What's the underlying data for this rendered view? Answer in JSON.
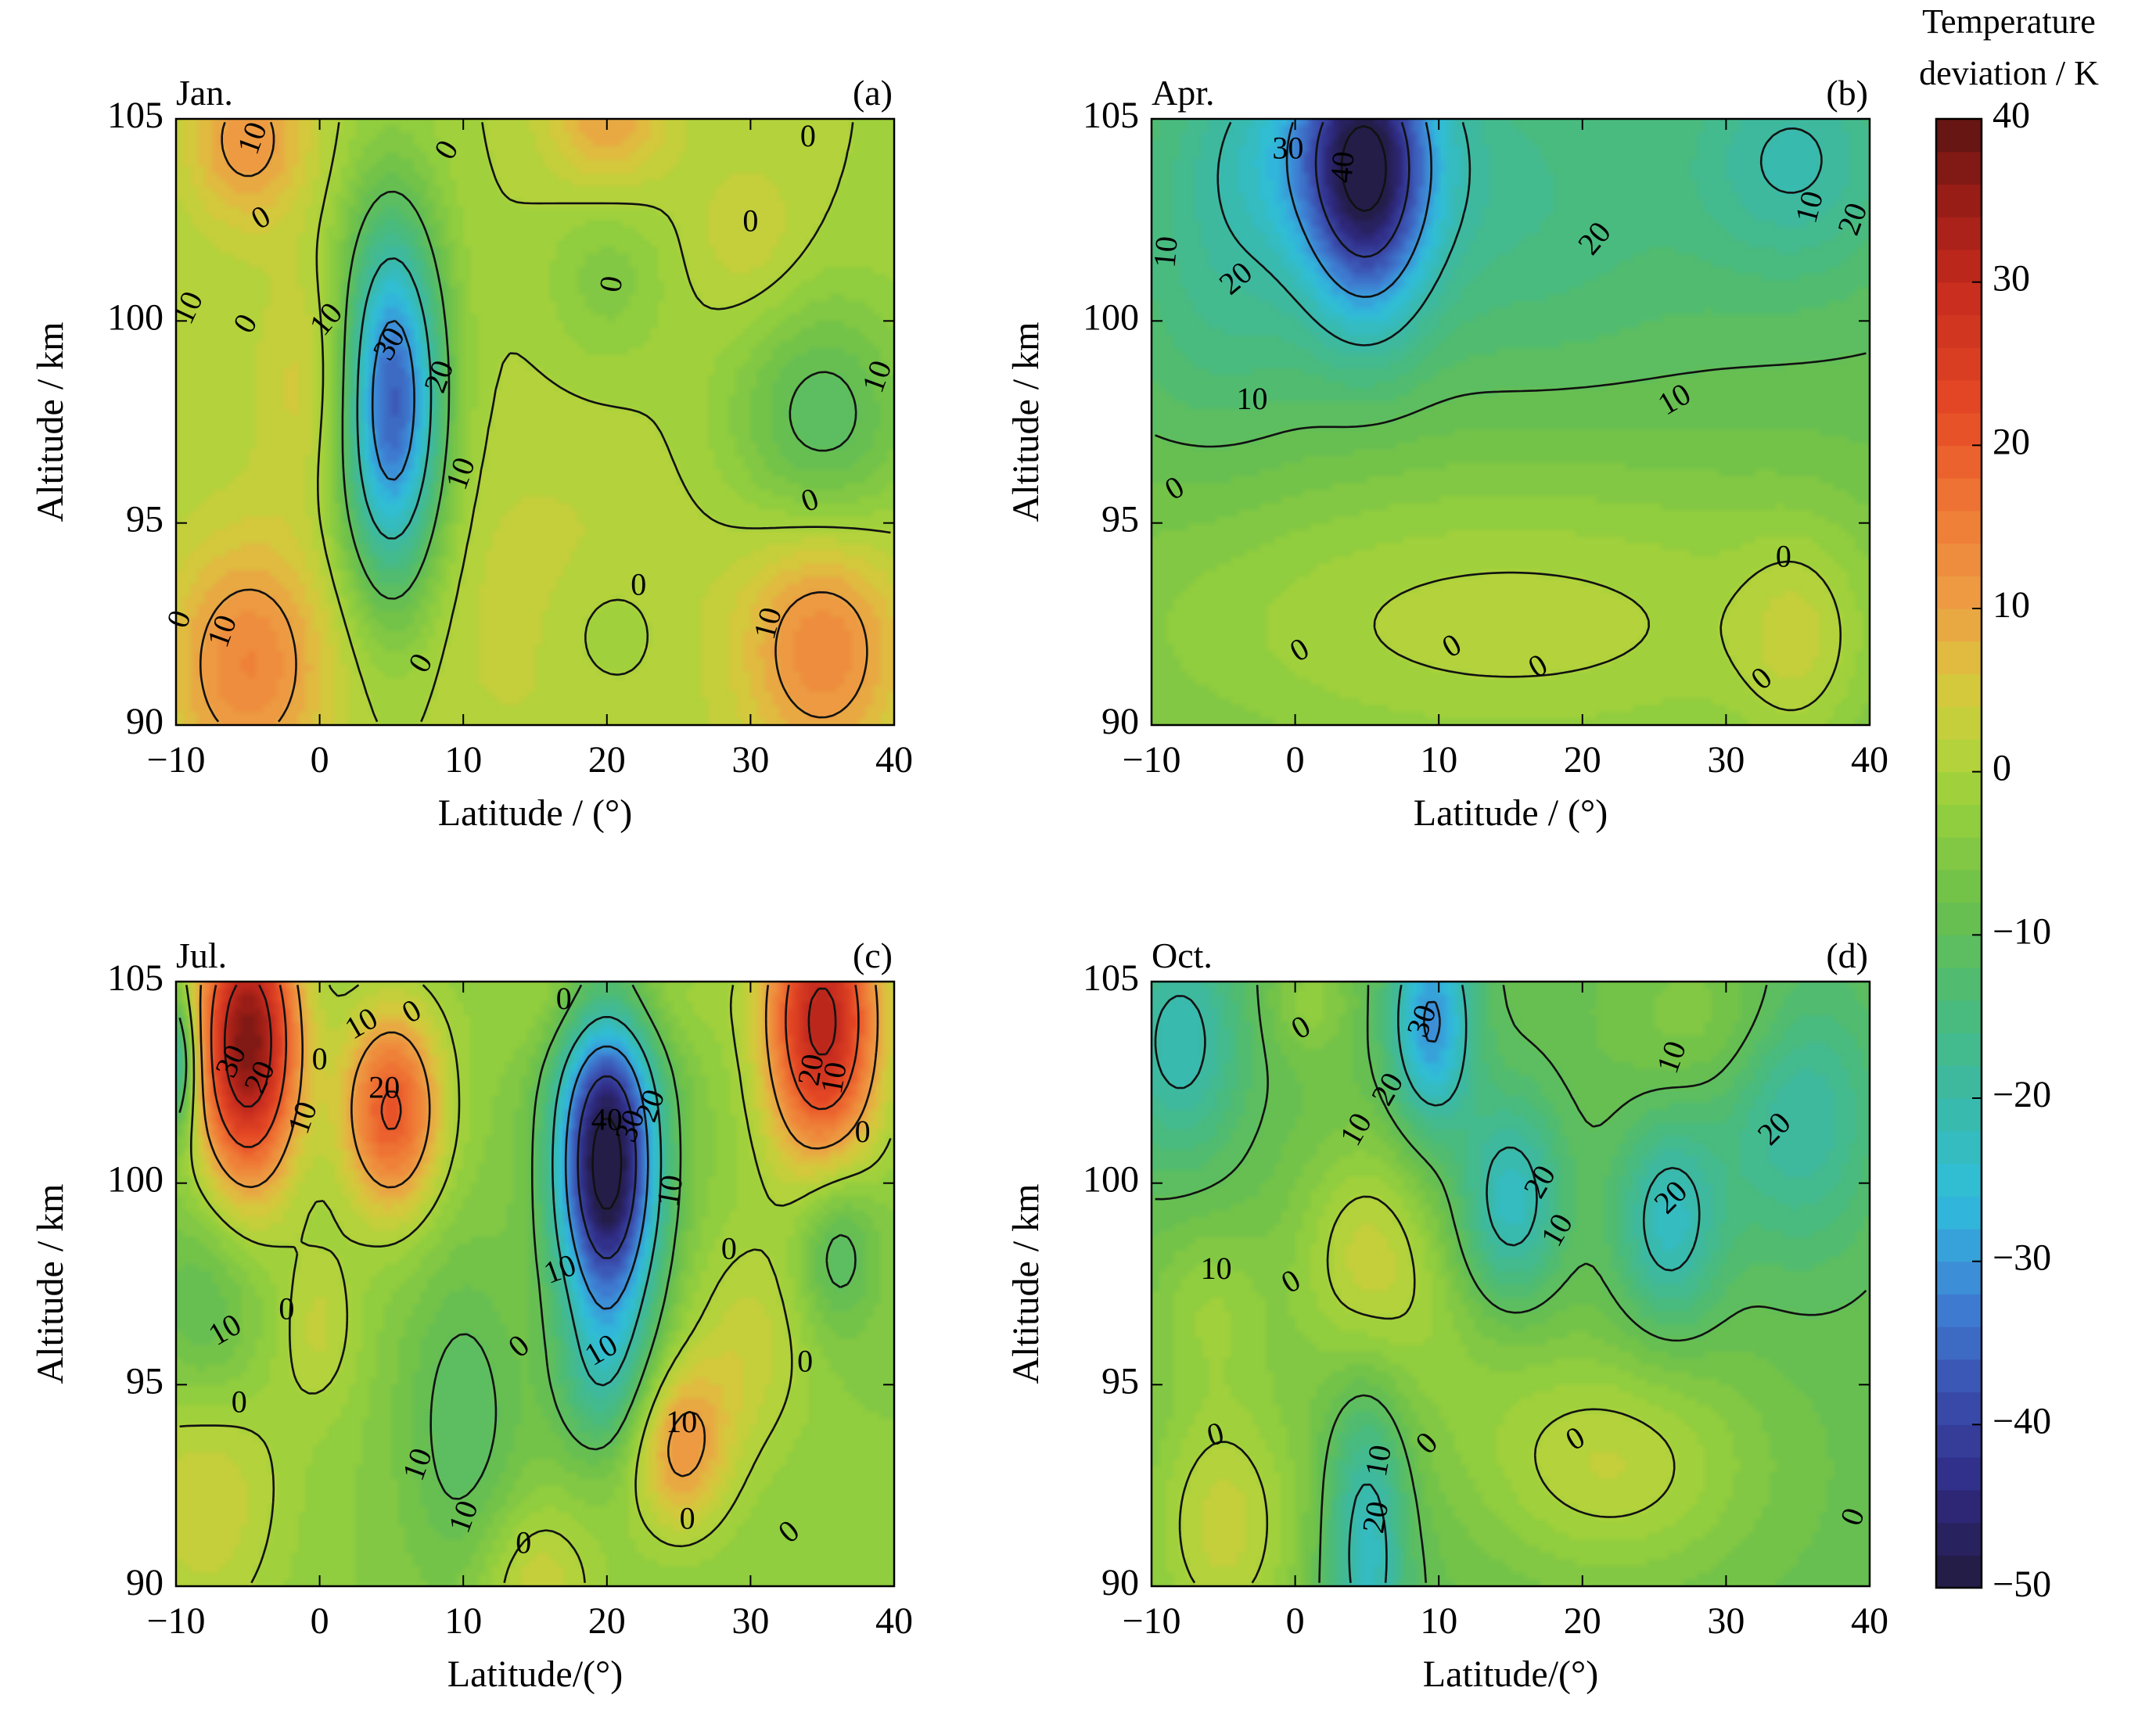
{
  "figure": {
    "colorbar": {
      "title_lines": [
        "Temperature",
        "deviation / K"
      ],
      "min": -50,
      "max": 40,
      "ticks": [
        40,
        30,
        20,
        10,
        0,
        -10,
        -20,
        -30,
        -40,
        -50
      ],
      "levels": 45,
      "stops": [
        {
          "v": -50,
          "c": "#211a3c"
        },
        {
          "v": -44,
          "c": "#2f2a82"
        },
        {
          "v": -38,
          "c": "#3b4fb0"
        },
        {
          "v": -32,
          "c": "#3f84d6"
        },
        {
          "v": -26,
          "c": "#2fbfdc"
        },
        {
          "v": -20,
          "c": "#3bb9a6"
        },
        {
          "v": -14,
          "c": "#4cbb77"
        },
        {
          "v": -8,
          "c": "#6cc04b"
        },
        {
          "v": -2,
          "c": "#97d03c"
        },
        {
          "v": 2,
          "c": "#bcd23a"
        },
        {
          "v": 6,
          "c": "#dcc43e"
        },
        {
          "v": 10,
          "c": "#eca044"
        },
        {
          "v": 16,
          "c": "#f07a36"
        },
        {
          "v": 22,
          "c": "#e64a25"
        },
        {
          "v": 30,
          "c": "#c52a1e"
        },
        {
          "v": 36,
          "c": "#8e1a14"
        },
        {
          "v": 40,
          "c": "#5a1412"
        }
      ]
    }
  },
  "chart_data": [
    {
      "type": "heatmap",
      "panel_label": "(a)",
      "month": "Jan.",
      "xlabel": "Latitude / (°)",
      "ylabel": "Altitude / km",
      "xlim": [
        -10,
        40
      ],
      "ylim": [
        90,
        105
      ],
      "xticks": [
        -10,
        0,
        10,
        20,
        30,
        40
      ],
      "yticks": [
        90,
        95,
        100,
        105
      ],
      "background": 0,
      "features": [
        {
          "x": -5,
          "y": 104.5,
          "amp": 12,
          "sx": 3,
          "sy": 1.5
        },
        {
          "x": 20,
          "y": 105,
          "amp": 10,
          "sx": 3,
          "sy": 1.2
        },
        {
          "x": 5,
          "y": 98,
          "amp": -38,
          "sx": 2.5,
          "sy": 3.2
        },
        {
          "x": 35,
          "y": 97.5,
          "amp": -12,
          "sx": 4.5,
          "sy": 2.2
        },
        {
          "x": -5,
          "y": 91.5,
          "amp": 14,
          "sx": 4,
          "sy": 2.2
        },
        {
          "x": 35,
          "y": 92,
          "amp": 14,
          "sx": 4,
          "sy": 2.2
        },
        {
          "x": 20,
          "y": 92.3,
          "amp": -3,
          "sx": 3,
          "sy": 1.2
        },
        {
          "x": 0,
          "y": 98.5,
          "amp": 6,
          "sx": 3,
          "sy": 2
        },
        {
          "x": 30,
          "y": 102,
          "amp": 4,
          "sx": 3,
          "sy": 1.5
        },
        {
          "x": 20,
          "y": 101,
          "amp": -5,
          "sx": 3,
          "sy": 1.5
        },
        {
          "x": 15,
          "y": 93,
          "amp": 3,
          "sx": 8,
          "sy": 3
        }
      ],
      "contour_labels": [
        {
          "x": -4.5,
          "y": 104.5,
          "text": "10",
          "rot": -70
        },
        {
          "x": 9,
          "y": 104.2,
          "text": "0",
          "rot": -60
        },
        {
          "x": -4,
          "y": 102.5,
          "text": "0",
          "rot": -30
        },
        {
          "x": 34,
          "y": 104.5,
          "text": "0",
          "rot": 0
        },
        {
          "x": 30,
          "y": 102.4,
          "text": "0",
          "rot": 0
        },
        {
          "x": -9,
          "y": 100.3,
          "text": "10",
          "rot": -65
        },
        {
          "x": -5,
          "y": 99.9,
          "text": "0",
          "rot": -60
        },
        {
          "x": 0.6,
          "y": 100,
          "text": "10",
          "rot": -50
        },
        {
          "x": 5,
          "y": 99.4,
          "text": "30",
          "rot": -60
        },
        {
          "x": 8.5,
          "y": 98.6,
          "text": "20",
          "rot": -70
        },
        {
          "x": 20.5,
          "y": 100.9,
          "text": "0",
          "rot": -80
        },
        {
          "x": 39,
          "y": 98.6,
          "text": "10",
          "rot": -70
        },
        {
          "x": 10,
          "y": 96.2,
          "text": "10",
          "rot": -70
        },
        {
          "x": 34.2,
          "y": 95.5,
          "text": "0",
          "rot": -20
        },
        {
          "x": 22.2,
          "y": 93.4,
          "text": "0",
          "rot": 0
        },
        {
          "x": -9.6,
          "y": 92.6,
          "text": "0",
          "rot": -70
        },
        {
          "x": -6.6,
          "y": 92.3,
          "text": "10",
          "rot": -70
        },
        {
          "x": 31.4,
          "y": 92.5,
          "text": "10",
          "rot": -75
        },
        {
          "x": 7.2,
          "y": 91.5,
          "text": "0",
          "rot": -60
        }
      ]
    },
    {
      "type": "heatmap",
      "panel_label": "(b)",
      "month": "Apr.",
      "xlabel": "Latitude / (°)",
      "ylabel": "Altitude / km",
      "xlim": [
        -10,
        40
      ],
      "ylim": [
        90,
        105
      ],
      "xticks": [
        -10,
        0,
        10,
        20,
        30,
        40
      ],
      "yticks": [
        90,
        95,
        100,
        105
      ],
      "background": -10,
      "features": [
        {
          "x": 5,
          "y": 103.5,
          "amp": -30,
          "sx": 3,
          "sy": 2.5
        },
        {
          "x": 2,
          "y": 104.5,
          "amp": -12,
          "sx": 6,
          "sy": 2
        },
        {
          "x": 35,
          "y": 104,
          "amp": -10,
          "sx": 5,
          "sy": 2
        },
        {
          "x": 15,
          "y": 103,
          "amp": -6,
          "sx": 10,
          "sy": 3
        },
        {
          "x": -5,
          "y": 101,
          "amp": -6,
          "sx": 5,
          "sy": 3
        },
        {
          "x": 15,
          "y": 92.5,
          "amp": 11,
          "sx": 22,
          "sy": 3
        },
        {
          "x": 35,
          "y": 92,
          "amp": 6,
          "sx": 3,
          "sy": 2
        }
      ],
      "contour_labels": [
        {
          "x": -0.5,
          "y": 104.2,
          "text": "30",
          "rot": 0
        },
        {
          "x": 3.5,
          "y": 103.8,
          "text": "40",
          "rot": -85
        },
        {
          "x": -8.8,
          "y": 101.7,
          "text": "10",
          "rot": -85
        },
        {
          "x": -4,
          "y": 101,
          "text": "20",
          "rot": -40
        },
        {
          "x": 21,
          "y": 102,
          "text": "20",
          "rot": -50
        },
        {
          "x": 36,
          "y": 102.8,
          "text": "10",
          "rot": -75
        },
        {
          "x": 39,
          "y": 102.5,
          "text": "20",
          "rot": -70
        },
        {
          "x": -3,
          "y": 98,
          "text": "10",
          "rot": 0
        },
        {
          "x": 26.5,
          "y": 98,
          "text": "10",
          "rot": -30
        },
        {
          "x": -8.3,
          "y": 95.8,
          "text": "0",
          "rot": -30
        },
        {
          "x": 0.4,
          "y": 91.8,
          "text": "0",
          "rot": -30
        },
        {
          "x": 11,
          "y": 91.9,
          "text": "0",
          "rot": -30
        },
        {
          "x": 17,
          "y": 91.4,
          "text": "0",
          "rot": -30
        },
        {
          "x": 34,
          "y": 94.1,
          "text": "0",
          "rot": 0
        },
        {
          "x": 32.6,
          "y": 91.1,
          "text": "0",
          "rot": -40
        }
      ]
    },
    {
      "type": "heatmap",
      "panel_label": "(c)",
      "month": "Jul.",
      "xlabel": "Latitude/(°)",
      "ylabel": "Altitude / km",
      "xlim": [
        -10,
        40
      ],
      "ylim": [
        90,
        105
      ],
      "xticks": [
        -10,
        0,
        10,
        20,
        30,
        40
      ],
      "yticks": [
        90,
        95,
        100,
        105
      ],
      "background": -4,
      "features": [
        {
          "x": -5,
          "y": 103.5,
          "amp": 42,
          "sx": 2.5,
          "sy": 2.5
        },
        {
          "x": 5,
          "y": 101.8,
          "amp": 25,
          "sx": 2.5,
          "sy": 1.8
        },
        {
          "x": 35,
          "y": 104,
          "amp": 36,
          "sx": 2.8,
          "sy": 2.5
        },
        {
          "x": 20,
          "y": 100.5,
          "amp": -50,
          "sx": 2.5,
          "sy": 2.8
        },
        {
          "x": -10,
          "y": 103,
          "amp": -20,
          "sx": 1,
          "sy": 1.2
        },
        {
          "x": -8,
          "y": 96.5,
          "amp": -10,
          "sx": 3,
          "sy": 2
        },
        {
          "x": 20,
          "y": 95,
          "amp": -10,
          "sx": 2.5,
          "sy": 1.5
        },
        {
          "x": 36,
          "y": 98.5,
          "amp": -10,
          "sx": 2,
          "sy": 1.5
        },
        {
          "x": 25,
          "y": 93.5,
          "amp": 16,
          "sx": 2.5,
          "sy": 1.5
        },
        {
          "x": -8,
          "y": 93,
          "amp": 9,
          "sx": 4,
          "sy": 3
        },
        {
          "x": 30,
          "y": 96,
          "amp": 7,
          "sx": 3,
          "sy": 2
        },
        {
          "x": 0,
          "y": 96.5,
          "amp": 6,
          "sx": 2,
          "sy": 1.5
        },
        {
          "x": 10,
          "y": 94,
          "amp": -8,
          "sx": 3,
          "sy": 3
        },
        {
          "x": 15,
          "y": 90,
          "amp": 8,
          "sx": 3,
          "sy": 1.5
        },
        {
          "x": 20,
          "y": 104.5,
          "amp": 6,
          "sx": 5,
          "sy": 1
        }
      ],
      "contour_labels": [
        {
          "x": -6,
          "y": 103,
          "text": "30",
          "rot": -65
        },
        {
          "x": -4,
          "y": 102.6,
          "text": "20",
          "rot": -65
        },
        {
          "x": -1,
          "y": 101.6,
          "text": "10",
          "rot": -70
        },
        {
          "x": 3,
          "y": 103.9,
          "text": "10",
          "rot": -30
        },
        {
          "x": 4.5,
          "y": 102.3,
          "text": "20",
          "rot": 0
        },
        {
          "x": 6.5,
          "y": 104.2,
          "text": "0",
          "rot": -30
        },
        {
          "x": 0,
          "y": 103,
          "text": "0",
          "rot": 0
        },
        {
          "x": 17,
          "y": 104.5,
          "text": "0",
          "rot": 0
        },
        {
          "x": 20,
          "y": 101.5,
          "text": "40",
          "rot": 0
        },
        {
          "x": 21.8,
          "y": 101.4,
          "text": "30",
          "rot": -70
        },
        {
          "x": 23.2,
          "y": 101.9,
          "text": "20",
          "rot": -70
        },
        {
          "x": 24.6,
          "y": 99.8,
          "text": "10",
          "rot": -80
        },
        {
          "x": 16.8,
          "y": 97.8,
          "text": "10",
          "rot": -20
        },
        {
          "x": 34.4,
          "y": 102.8,
          "text": "20",
          "rot": -80
        },
        {
          "x": 36,
          "y": 102.6,
          "text": "10",
          "rot": -80
        },
        {
          "x": 37.8,
          "y": 101.2,
          "text": "0",
          "rot": 0
        },
        {
          "x": 28.5,
          "y": 98.3,
          "text": "0",
          "rot": 0
        },
        {
          "x": -6.5,
          "y": 96.3,
          "text": "10",
          "rot": -30
        },
        {
          "x": -2.3,
          "y": 96.8,
          "text": "0",
          "rot": 0
        },
        {
          "x": 14,
          "y": 95.9,
          "text": "0",
          "rot": -40
        },
        {
          "x": 19.7,
          "y": 95.8,
          "text": "10",
          "rot": -30
        },
        {
          "x": 33.8,
          "y": 95.5,
          "text": "0",
          "rot": 0
        },
        {
          "x": -5.6,
          "y": 94.5,
          "text": "0",
          "rot": 0
        },
        {
          "x": 7,
          "y": 93,
          "text": "10",
          "rot": -70
        },
        {
          "x": 10.2,
          "y": 91.7,
          "text": "10",
          "rot": -70
        },
        {
          "x": 25.2,
          "y": 94,
          "text": "10",
          "rot": 0
        },
        {
          "x": 25.6,
          "y": 91.6,
          "text": "0",
          "rot": 0
        },
        {
          "x": 32.8,
          "y": 91.3,
          "text": "0",
          "rot": -40
        },
        {
          "x": 14.2,
          "y": 91,
          "text": "0",
          "rot": 0
        }
      ]
    },
    {
      "type": "heatmap",
      "panel_label": "(d)",
      "month": "Oct.",
      "xlabel": "Latitude/(°)",
      "ylabel": "Altitude / km",
      "xlim": [
        -10,
        40
      ],
      "ylim": [
        90,
        105
      ],
      "xticks": [
        -10,
        0,
        10,
        20,
        30,
        40
      ],
      "yticks": [
        90,
        95,
        100,
        105
      ],
      "background": -9,
      "features": [
        {
          "x": 9.5,
          "y": 104,
          "amp": -22,
          "sx": 2,
          "sy": 1.8
        },
        {
          "x": -8,
          "y": 103.5,
          "amp": -13,
          "sx": 3,
          "sy": 2
        },
        {
          "x": 35,
          "y": 102,
          "amp": -12,
          "sx": 4,
          "sy": 2.5
        },
        {
          "x": 15,
          "y": 99.5,
          "amp": -15,
          "sx": 2.5,
          "sy": 1.8
        },
        {
          "x": 26,
          "y": 99,
          "amp": -14,
          "sx": 2.5,
          "sy": 1.8
        },
        {
          "x": 5,
          "y": 91,
          "amp": -15,
          "sx": 2,
          "sy": 2.8
        },
        {
          "x": 5,
          "y": 98.3,
          "amp": 11,
          "sx": 3.5,
          "sy": 2
        },
        {
          "x": -5,
          "y": 91.5,
          "amp": 12,
          "sx": 4,
          "sy": 2.5
        },
        {
          "x": 22,
          "y": 93,
          "amp": 11,
          "sx": 7,
          "sy": 2
        },
        {
          "x": 30,
          "y": 104,
          "amp": 6,
          "sx": 5,
          "sy": 1.5
        },
        {
          "x": 1,
          "y": 104.5,
          "amp": 6,
          "sx": 2,
          "sy": 1
        },
        {
          "x": 10,
          "y": 96,
          "amp": 4,
          "sx": 6,
          "sy": 2
        },
        {
          "x": -6,
          "y": 97,
          "amp": 6,
          "sx": 3,
          "sy": 1.5
        }
      ],
      "contour_labels": [
        {
          "x": 0.5,
          "y": 103.8,
          "text": "0",
          "rot": -30
        },
        {
          "x": 9,
          "y": 104,
          "text": "30",
          "rot": -70
        },
        {
          "x": 6.6,
          "y": 102.3,
          "text": "20",
          "rot": -60
        },
        {
          "x": 4.4,
          "y": 101.3,
          "text": "10",
          "rot": -60
        },
        {
          "x": 26.4,
          "y": 103.1,
          "text": "10",
          "rot": -70
        },
        {
          "x": 33.5,
          "y": 101.3,
          "text": "20",
          "rot": -45
        },
        {
          "x": 17.2,
          "y": 100,
          "text": "20",
          "rot": -60
        },
        {
          "x": 18.4,
          "y": 98.8,
          "text": "10",
          "rot": -60
        },
        {
          "x": 26.3,
          "y": 99.6,
          "text": "20",
          "rot": -45
        },
        {
          "x": -5.5,
          "y": 97.8,
          "text": "10",
          "rot": 0
        },
        {
          "x": -0.2,
          "y": 97.5,
          "text": "0",
          "rot": -30
        },
        {
          "x": -5.5,
          "y": 93.7,
          "text": "0",
          "rot": -15
        },
        {
          "x": 6,
          "y": 93.1,
          "text": "10",
          "rot": -80
        },
        {
          "x": 5.8,
          "y": 91.7,
          "text": "20",
          "rot": -80
        },
        {
          "x": 9.3,
          "y": 93.5,
          "text": "0",
          "rot": -45
        },
        {
          "x": 19.6,
          "y": 93.6,
          "text": "0",
          "rot": -30
        },
        {
          "x": 39,
          "y": 91.7,
          "text": "0",
          "rot": -70
        }
      ]
    }
  ]
}
